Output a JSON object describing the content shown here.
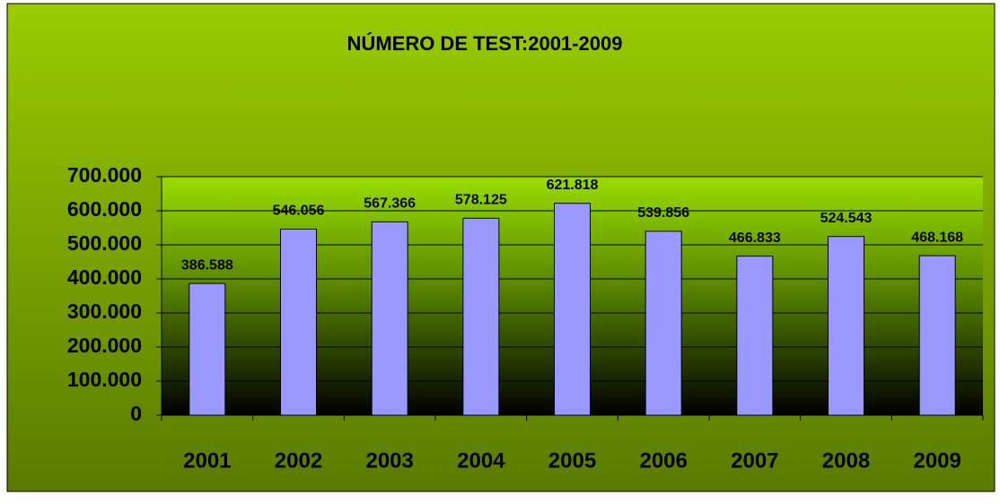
{
  "chart_data": {
    "type": "bar",
    "title": "NÚMERO DE TEST:2001-2009",
    "categories": [
      "2001",
      "2002",
      "2003",
      "2004",
      "2005",
      "2006",
      "2007",
      "2008",
      "2009"
    ],
    "values": [
      386588,
      546056,
      567366,
      578125,
      621818,
      539856,
      466833,
      524543,
      468168
    ],
    "value_labels": [
      "386.588",
      "546.056",
      "567.366",
      "578.125",
      "621.818",
      "539.856",
      "466.833",
      "524.543",
      "468.168"
    ],
    "color": "#9999ff",
    "ylim": [
      0,
      700000
    ],
    "yticks": [
      0,
      {
        "value": 100000,
        "label": "100.000"
      },
      {
        "value": 200000,
        "label": "200.000"
      },
      {
        "value": 300000,
        "label": "300.000"
      },
      {
        "value": 400000,
        "label": "400.000"
      },
      {
        "value": 500000,
        "label": "500.000"
      },
      {
        "value": 600000,
        "label": "600.000"
      },
      {
        "value": 700000,
        "label": "700.000"
      }
    ],
    "grid": true
  }
}
